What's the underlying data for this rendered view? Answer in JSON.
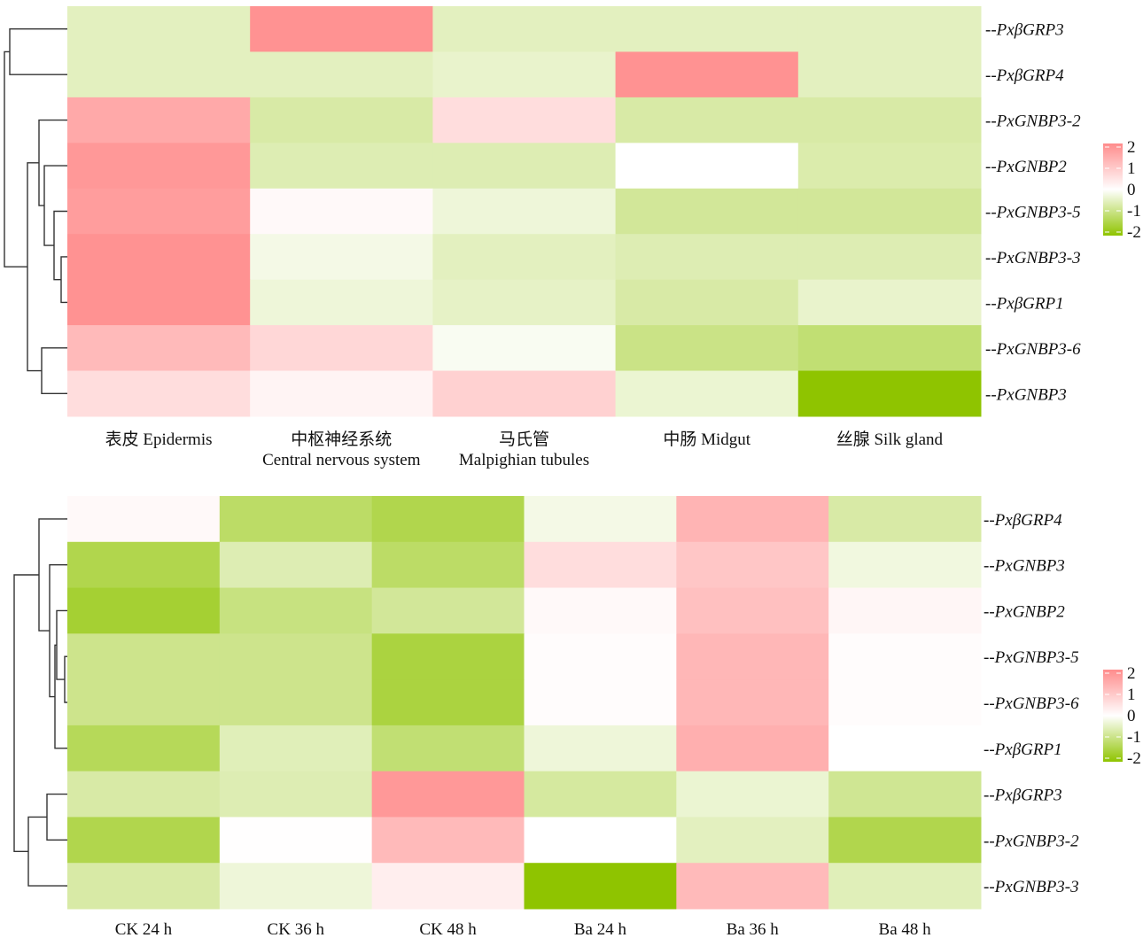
{
  "colors": {
    "low": "#8fc400",
    "mid": "#ffffff",
    "high": "#ff8c8c"
  },
  "chart_data": [
    {
      "type": "heatmap",
      "rows": [
        "--PxβGRP3",
        "--PxβGRP4",
        "--PxGNBP3-2",
        "--PxGNBP2",
        "--PxGNBP3-5",
        "--PxGNBP3-3",
        "--PxβGRP1",
        "--PxGNBP3-6",
        "--PxGNBP3"
      ],
      "columns": [
        [
          "表皮 Epidermis"
        ],
        [
          "中枢神经系统",
          "Central nervous system"
        ],
        [
          "马氏管",
          "Malpighian tubules"
        ],
        [
          "中肠 Midgut"
        ],
        [
          "丝腺  Silk gland"
        ]
      ],
      "values": [
        [
          -0.5,
          1.9,
          -0.5,
          -0.5,
          -0.5
        ],
        [
          -0.5,
          -0.5,
          -0.4,
          1.9,
          -0.5
        ],
        [
          1.5,
          -0.7,
          0.6,
          -0.7,
          -0.7
        ],
        [
          1.8,
          -0.6,
          -0.6,
          0.0,
          -0.65
        ],
        [
          1.7,
          0.1,
          -0.3,
          -0.8,
          -0.8
        ],
        [
          1.9,
          -0.2,
          -0.5,
          -0.6,
          -0.6
        ],
        [
          1.9,
          -0.3,
          -0.45,
          -0.7,
          -0.4
        ],
        [
          1.2,
          0.7,
          -0.1,
          -0.95,
          -1.1
        ],
        [
          0.6,
          0.2,
          0.8,
          -0.35,
          -2.0
        ]
      ],
      "row_dendrogram": true,
      "legend": {
        "ticks": [
          "2",
          "1",
          "0",
          "-1",
          "-2"
        ],
        "range": [
          -2,
          2
        ],
        "position": "right"
      }
    },
    {
      "type": "heatmap",
      "rows": [
        "--PxβGRP4",
        "--PxGNBP3",
        "--PxGNBP2",
        "--PxGNBP3-5",
        "--PxGNBP3-6",
        "--PxβGRP1",
        "--PxβGRP3",
        "--PxGNBP3-2",
        "--PxGNBP3-3"
      ],
      "columns": [
        [
          "CK 24 h"
        ],
        [
          "CK 36 h"
        ],
        [
          "CK 48 h"
        ],
        [
          "Ba 24 h"
        ],
        [
          "Ba 36 h"
        ],
        [
          "Ba 48 h"
        ]
      ],
      "values": [
        [
          0.1,
          -1.2,
          -1.4,
          -0.2,
          1.3,
          -0.7
        ],
        [
          -1.4,
          -0.6,
          -1.2,
          0.6,
          1.0,
          -0.25
        ],
        [
          -1.6,
          -1.0,
          -0.8,
          0.1,
          1.1,
          0.15
        ],
        [
          -0.9,
          -0.9,
          -1.5,
          0.05,
          1.25,
          0.05
        ],
        [
          -0.9,
          -0.9,
          -1.5,
          0.05,
          1.25,
          0.05
        ],
        [
          -1.3,
          -0.55,
          -1.1,
          -0.3,
          1.4,
          0.0
        ],
        [
          -0.7,
          -0.6,
          1.8,
          -0.75,
          -0.35,
          -0.85
        ],
        [
          -1.4,
          0.02,
          1.2,
          0.0,
          -0.5,
          -1.4
        ],
        [
          -0.7,
          -0.3,
          0.3,
          -2.0,
          1.2,
          -0.55
        ]
      ],
      "row_dendrogram": true,
      "legend": {
        "ticks": [
          "2",
          "1",
          "0",
          "-1",
          "-2"
        ],
        "range": [
          -2,
          2
        ],
        "position": "right"
      }
    }
  ]
}
